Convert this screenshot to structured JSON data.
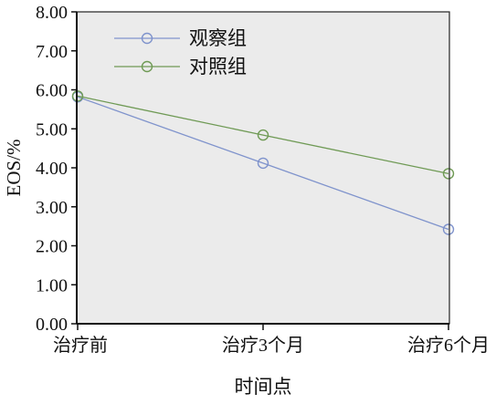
{
  "chart_data": {
    "type": "line",
    "title": "",
    "xlabel": "时间点",
    "ylabel": "EOS/%",
    "categories": [
      "治疗前",
      "治疗3个月",
      "治疗6个月"
    ],
    "ylim": [
      0,
      8
    ],
    "yticks": [
      "0.00",
      "1.00",
      "2.00",
      "3.00",
      "4.00",
      "5.00",
      "6.00",
      "7.00",
      "8.00"
    ],
    "grid": false,
    "legend_position": "top-left",
    "plot_background": "#ebebeb",
    "series": [
      {
        "name": "观察组",
        "values": [
          5.82,
          4.12,
          2.42
        ],
        "color": "#7f93cc",
        "marker": "open-circle"
      },
      {
        "name": "对照组",
        "values": [
          5.84,
          4.84,
          3.85
        ],
        "color": "#6f9a55",
        "marker": "open-circle"
      }
    ]
  }
}
